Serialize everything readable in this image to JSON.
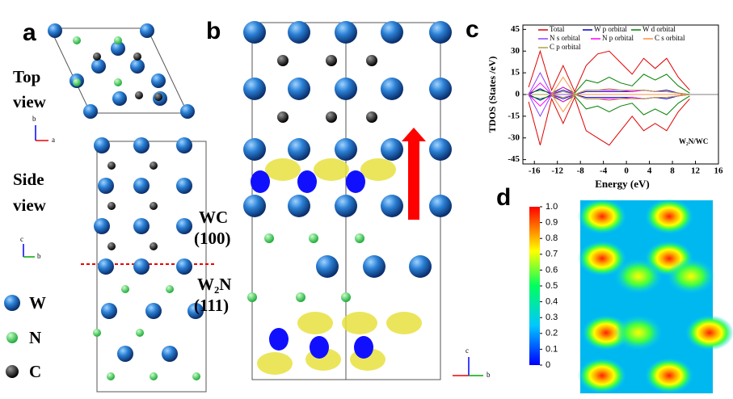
{
  "panel_labels": [
    "a",
    "b",
    "c",
    "d"
  ],
  "panel_a": {
    "top_view": [
      "Top",
      "view"
    ],
    "side_view": [
      "Side",
      "view"
    ],
    "axes_top": [
      "b",
      "a"
    ],
    "axes_side": [
      "c",
      "b"
    ],
    "interface_labels": [
      "WC",
      "(100)",
      "W₂N",
      "(111)"
    ],
    "legend": [
      "W",
      "N",
      "C"
    ]
  },
  "panel_b": {
    "axes": [
      "c",
      "b"
    ]
  },
  "chart_data": {
    "type": "line",
    "ylabel": "TDOS (States /eV)",
    "xlabel": "Energy (eV)",
    "annotation": "W₂N/WC",
    "x": [
      -17,
      -15,
      -13,
      -11,
      -9,
      -7,
      -5,
      -3,
      -1,
      1,
      3,
      5,
      7,
      9,
      11
    ],
    "xlim": [
      -18,
      16
    ],
    "xticks": [
      -16,
      -12,
      -8,
      -4,
      0,
      4,
      8,
      12,
      16
    ],
    "ylim": [
      -48,
      48
    ],
    "yticks": [
      -45,
      -30,
      -15,
      0,
      15,
      30,
      45
    ],
    "series": [
      {
        "name": "Total",
        "color": "#e00000",
        "values": [
          5,
          30,
          3,
          20,
          2,
          20,
          28,
          30,
          22,
          14,
          25,
          18,
          25,
          12,
          3
        ],
        "down": [
          -5,
          -35,
          -3,
          -20,
          -2,
          -25,
          -30,
          -35,
          -25,
          -15,
          -25,
          -20,
          -25,
          -12,
          -3
        ]
      },
      {
        "name": "W p orbital",
        "color": "#0000c0",
        "values": [
          0,
          4,
          0,
          3,
          0,
          2,
          2,
          2,
          2,
          2,
          3,
          2,
          3,
          1,
          0
        ],
        "down": [
          0,
          -4,
          0,
          -3,
          0,
          -2,
          -2,
          -2,
          -2,
          -2,
          -3,
          -2,
          -3,
          -1,
          0
        ]
      },
      {
        "name": "W d orbital",
        "color": "#008000",
        "values": [
          1,
          3,
          1,
          5,
          1,
          10,
          8,
          12,
          8,
          6,
          14,
          10,
          14,
          6,
          1
        ],
        "down": [
          -1,
          -3,
          -1,
          -5,
          -1,
          -10,
          -8,
          -12,
          -8,
          -6,
          -14,
          -10,
          -14,
          -6,
          -1
        ]
      },
      {
        "name": "N s orbital",
        "color": "#9040ff",
        "values": [
          0,
          15,
          0,
          0,
          0,
          0,
          0,
          0,
          0,
          0,
          0,
          0,
          0,
          0,
          0
        ],
        "down": [
          0,
          -15,
          0,
          0,
          0,
          0,
          0,
          0,
          0,
          0,
          0,
          0,
          0,
          0,
          0
        ]
      },
      {
        "name": "N p orbital",
        "color": "#ff00ff",
        "values": [
          0,
          8,
          0,
          5,
          0,
          3,
          3,
          3,
          3,
          2,
          3,
          2,
          2,
          1,
          0
        ],
        "down": [
          0,
          -8,
          0,
          -5,
          0,
          -3,
          -3,
          -3,
          -3,
          -2,
          -3,
          -2,
          -2,
          -1,
          0
        ]
      },
      {
        "name": "C s orbital",
        "color": "#ff9040",
        "values": [
          0,
          0,
          0,
          12,
          0,
          0,
          0,
          0,
          0,
          0,
          0,
          0,
          0,
          0,
          0
        ],
        "down": [
          0,
          0,
          0,
          -12,
          0,
          0,
          0,
          0,
          0,
          0,
          0,
          0,
          0,
          0,
          0
        ]
      },
      {
        "name": "C p orbital",
        "color": "#b0a040",
        "values": [
          0,
          0,
          0,
          2,
          0,
          3,
          3,
          4,
          3,
          3,
          3,
          2,
          2,
          1,
          0
        ],
        "down": [
          0,
          0,
          0,
          -2,
          0,
          -3,
          -3,
          -4,
          -3,
          -3,
          -3,
          -2,
          -2,
          -1,
          0
        ]
      }
    ]
  },
  "colorbar": {
    "ylim": [
      0,
      1
    ],
    "yticks": [
      0,
      0.1,
      0.2,
      0.3,
      0.4,
      0.5,
      0.6,
      0.7,
      0.8,
      0.9,
      {
        "value": 1,
        "label": "1.0"
      }
    ]
  }
}
